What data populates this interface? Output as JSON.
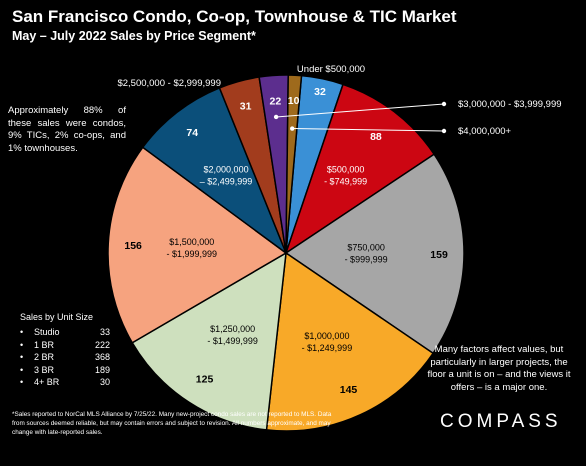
{
  "header": {
    "title": "San Francisco Condo, Co-op, Townhouse & TIC Market",
    "subtitle": "May – July 2022 Sales by Price Segment*"
  },
  "chart_data": {
    "type": "pie",
    "title": "San Francisco Condo, Co-op, Townhouse & TIC Market",
    "subtitle": "May – July 2022 Sales by Price Segment*",
    "slices": [
      {
        "label": "Under $500,000",
        "value": 32,
        "color": "#3a90d6"
      },
      {
        "label": "$500,000 - $749,999",
        "value": 88,
        "color": "#cc0612"
      },
      {
        "label": "$750,000 - $999,999",
        "value": 159,
        "color": "#a6a6a6"
      },
      {
        "label": "$1,000,000 - $1,249,999",
        "value": 145,
        "color": "#f8a928"
      },
      {
        "label": "$1,250,000 - $1,499,999",
        "value": 125,
        "color": "#cee0be"
      },
      {
        "label": "$1,500,000 - $1,999,999",
        "value": 156,
        "color": "#f6a37f"
      },
      {
        "label": "$2,000,000 – $2,499,999",
        "value": 74,
        "color": "#0b4f7a"
      },
      {
        "label": "$2,500,000 - $2,999,999",
        "value": 31,
        "color": "#a23c1d"
      },
      {
        "label": "$3,000,000 - $3,999,999",
        "value": 22,
        "color": "#5c2e8e"
      },
      {
        "label": "$4,000,000+",
        "value": 10,
        "color": "#9e6a1c"
      }
    ]
  },
  "notes": {
    "left": "Approximately 88% of these sales were condos, 9% TICs, 2% co-ops, and 1% townhouses.",
    "right": "Many factors affect values, but particularly in larger projects, the floor a unit is on – and the views it offers – is a major one."
  },
  "unit_size": {
    "title": "Sales by Unit Size",
    "rows": [
      {
        "bullet": "•",
        "label": "Studio",
        "value": "33"
      },
      {
        "bullet": "•",
        "label": "1 BR",
        "value": "222"
      },
      {
        "bullet": "•",
        "label": "2 BR",
        "value": "368"
      },
      {
        "bullet": "•",
        "label": "3 BR",
        "value": "189"
      },
      {
        "bullet": "•",
        "label": "4+ BR",
        "value": "30"
      }
    ]
  },
  "footnote": "*Sales reported to NorCal MLS Alliance by 7/25/22. Many new-project condo sales are not reported to MLS. Data from sources deemed reliable, but may contain errors and subject to revision. All numbers approximate, and may change with late-reported sales.",
  "brand": {
    "logo_text": "COMPASS"
  }
}
